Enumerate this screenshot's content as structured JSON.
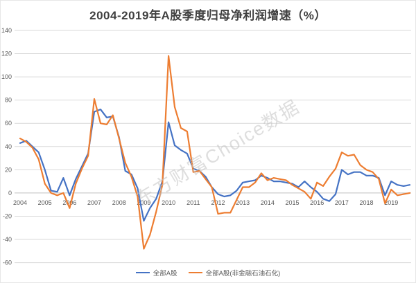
{
  "chart_data": {
    "type": "line",
    "title": "2004-2019年A股季度归母净利润增速（%）",
    "watermark": "东方财富Choice数据",
    "x_tick_labels": [
      "2004",
      "2005",
      "2006",
      "2007",
      "2008",
      "2009",
      "2010",
      "2011",
      "2012",
      "2013",
      "2014",
      "2015",
      "2016",
      "2017",
      "2018",
      "2019"
    ],
    "points_per_year": 4,
    "x_unit": "quarter",
    "ylim": [
      -60,
      140
    ],
    "y_tick_step": 20,
    "y_tick_labels": [
      140,
      120,
      100,
      80,
      60,
      40,
      20,
      0,
      -20,
      -40,
      -60
    ],
    "grid": true,
    "legend_position": "bottom",
    "colors": {
      "grid": "#D9D9D9",
      "zero_axis": "#BFBFBF",
      "tick_text": "#595959",
      "title_text": "#404040",
      "legend_text": "#595959",
      "watermark_text": "#C4C4C4",
      "background": "#FFFFFF"
    },
    "series": [
      {
        "name": "全部A股",
        "color": "#4472C4",
        "values": [
          43,
          45,
          40,
          35,
          20,
          2,
          1,
          13,
          -2,
          12,
          23,
          34,
          70,
          72,
          65,
          66,
          48,
          19,
          16,
          4,
          -24,
          -13,
          -5,
          10,
          61,
          41,
          37,
          34,
          21,
          19,
          14,
          5,
          -1,
          -3,
          -2,
          2,
          9,
          10,
          11,
          15,
          13,
          10,
          10,
          9,
          8,
          5,
          10,
          5,
          1,
          -5,
          -7,
          -1,
          20,
          16,
          18,
          18,
          15,
          15,
          13,
          -2,
          10,
          7,
          6,
          7
        ]
      },
      {
        "name": "全部A股(非金融石油石化)",
        "color": "#ED7D31",
        "values": [
          47,
          44,
          39,
          29,
          8,
          0,
          -2,
          0,
          -13,
          8,
          21,
          32,
          81,
          60,
          59,
          67,
          47,
          26,
          14,
          -3,
          -48,
          -36,
          -16,
          7,
          118,
          74,
          56,
          53,
          18,
          19,
          12,
          5,
          -18,
          -17,
          -17,
          -6,
          5,
          5,
          9,
          17,
          11,
          13,
          12,
          11,
          7,
          4,
          1,
          -5,
          9,
          6,
          14,
          21,
          35,
          32,
          33,
          24,
          20,
          18,
          12,
          -9,
          3,
          -2,
          -1,
          0
        ]
      }
    ]
  }
}
